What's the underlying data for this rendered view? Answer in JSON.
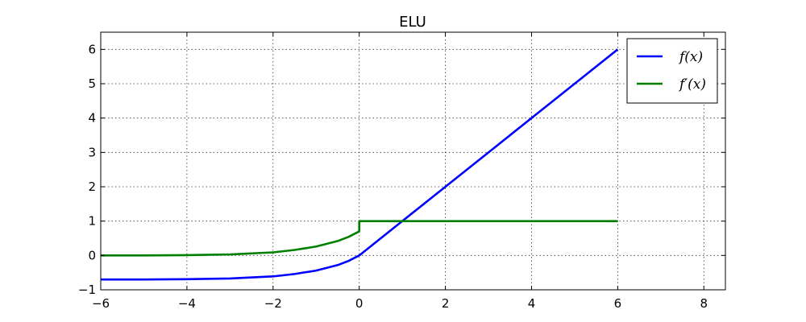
{
  "chart_data": {
    "type": "line",
    "title": "ELU",
    "xlabel": "",
    "ylabel": "",
    "xlim": [
      -6,
      8.5
    ],
    "ylim": [
      -1,
      6.5
    ],
    "xticks": [
      -6,
      -4,
      -2,
      0,
      2,
      4,
      6,
      8
    ],
    "yticks": [
      -1,
      0,
      1,
      2,
      3,
      4,
      5,
      6
    ],
    "xtick_labels": [
      "−6",
      "−4",
      "−2",
      "0",
      "2",
      "4",
      "6",
      "8"
    ],
    "ytick_labels": [
      "−1",
      "0",
      "1",
      "2",
      "3",
      "4",
      "5",
      "6"
    ],
    "grid": true,
    "legend_position": "top-right",
    "series": [
      {
        "name": "f(x)",
        "color": "#0000ff",
        "x": [
          -6,
          -5,
          -4,
          -3,
          -2,
          -1.5,
          -1,
          -0.5,
          -0.25,
          0,
          1,
          2,
          3,
          4,
          5,
          6
        ],
        "y": [
          -0.7,
          -0.7,
          -0.69,
          -0.67,
          -0.61,
          -0.54,
          -0.44,
          -0.28,
          -0.16,
          0,
          1,
          2,
          3,
          4,
          5,
          6
        ]
      },
      {
        "name": "f′(x)",
        "color": "#007f00",
        "x": [
          -6,
          -5,
          -4,
          -3,
          -2,
          -1.5,
          -1,
          -0.5,
          -0.25,
          0,
          0,
          6
        ],
        "y": [
          0,
          0,
          0.01,
          0.03,
          0.09,
          0.16,
          0.26,
          0.42,
          0.54,
          0.7,
          1,
          1
        ]
      }
    ]
  }
}
